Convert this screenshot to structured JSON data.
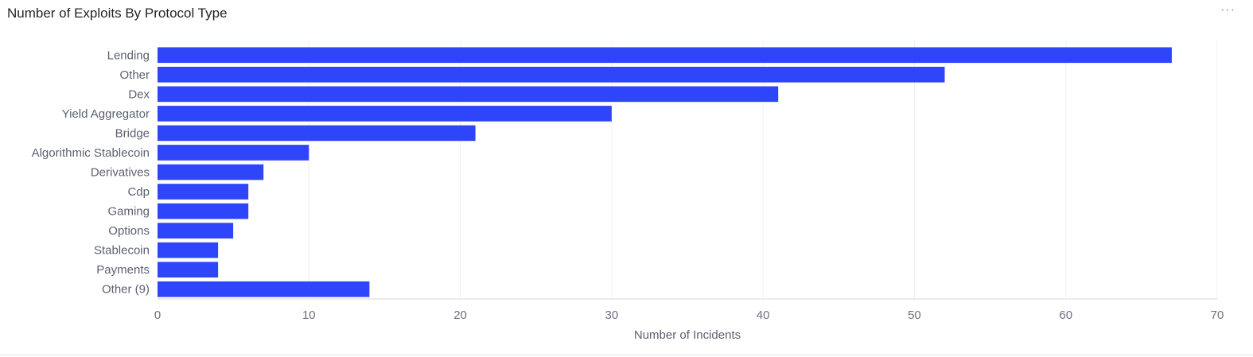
{
  "header": {
    "title": "Number of Exploits By Protocol Type",
    "more_label": "···"
  },
  "chart_data": {
    "type": "bar",
    "orientation": "horizontal",
    "title": "Number of Exploits By Protocol Type",
    "xlabel": "Number of Incidents",
    "ylabel": "",
    "xlim": [
      0,
      70
    ],
    "xticks": [
      0,
      10,
      20,
      30,
      40,
      50,
      60,
      70
    ],
    "grid": true,
    "bar_color": "#2e45fa",
    "categories": [
      "Lending",
      "Other",
      "Dex",
      "Yield Aggregator",
      "Bridge",
      "Algorithmic Stablecoin",
      "Derivatives",
      "Cdp",
      "Gaming",
      "Options",
      "Stablecoin",
      "Payments",
      "Other (9)"
    ],
    "values": [
      67,
      52,
      41,
      30,
      21,
      10,
      7,
      6,
      6,
      5,
      4,
      4,
      14
    ]
  }
}
